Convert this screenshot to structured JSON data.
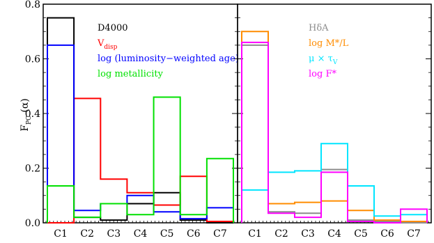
{
  "chart_data": [
    {
      "type": "histogram-step",
      "ylabel_main": "F",
      "ylabel_sub": "PC",
      "ylabel_tail": " (α)",
      "ylim": [
        0,
        0.8
      ],
      "yticks": [
        "0.0",
        "0.2",
        "0.4",
        "0.6",
        "0.8"
      ],
      "yticks_values": [
        0.0,
        0.2,
        0.4,
        0.6,
        0.8
      ],
      "categories": [
        "C1",
        "C2",
        "C3",
        "C4",
        "C5",
        "C6",
        "C7"
      ],
      "legend_location": "top-right",
      "series": [
        {
          "name": "D4000",
          "color": "#000000",
          "values": [
            0.75,
            0.02,
            0.01,
            0.07,
            0.11,
            0.01,
            0.0
          ]
        },
        {
          "name": "V",
          "name_sub": "disp",
          "color": "#ff0000",
          "values": [
            0.0,
            0.455,
            0.16,
            0.11,
            0.065,
            0.17,
            0.005
          ]
        },
        {
          "name": "log (luminosity−weighted age)",
          "color": "#0000ff",
          "values": [
            0.65,
            0.045,
            0.07,
            0.1,
            0.04,
            0.015,
            0.055
          ]
        },
        {
          "name": "log metallicity",
          "color": "#00e000",
          "values": [
            0.135,
            0.02,
            0.07,
            0.03,
            0.46,
            0.03,
            0.235
          ]
        }
      ]
    },
    {
      "type": "histogram-step",
      "ylim": [
        0,
        0.8
      ],
      "categories": [
        "C1",
        "C2",
        "C3",
        "C4",
        "C5",
        "C6",
        "C7"
      ],
      "legend_location": "top-right",
      "series": [
        {
          "name": "HδA",
          "color": "#8c8c8c",
          "values": [
            0.65,
            0.04,
            0.035,
            0.195,
            0.01,
            0.005,
            0.0
          ]
        },
        {
          "name": "log M*/L",
          "color": "#ff8c00",
          "values": [
            0.7,
            0.07,
            0.075,
            0.08,
            0.045,
            0.01,
            0.005
          ]
        },
        {
          "name": "μ × τ",
          "name_sub": "V",
          "color": "#00e5ff",
          "values": [
            0.12,
            0.185,
            0.19,
            0.29,
            0.135,
            0.025,
            0.03
          ]
        },
        {
          "name": "log F*",
          "color": "#ff00ff",
          "values": [
            0.66,
            0.035,
            0.02,
            0.185,
            0.005,
            0.0,
            0.05
          ]
        }
      ]
    }
  ]
}
